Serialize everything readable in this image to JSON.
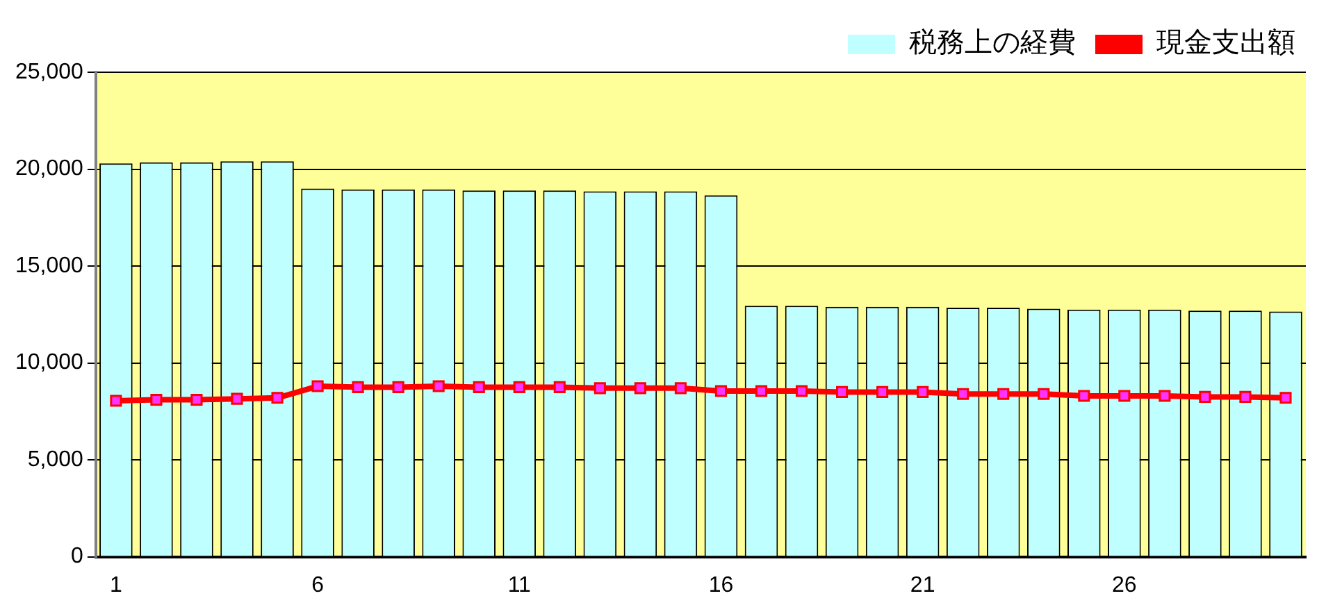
{
  "chart_data": {
    "type": "bar",
    "categories": [
      "1",
      null,
      null,
      null,
      null,
      "6",
      null,
      null,
      null,
      null,
      "11",
      null,
      null,
      null,
      null,
      "16",
      null,
      null,
      null,
      null,
      "21",
      null,
      null,
      null,
      null,
      "26",
      null,
      null,
      null,
      null
    ],
    "series": [
      {
        "name": "税務上の経費",
        "color": "#c0ffff",
        "values": [
          20300,
          20350,
          20350,
          20400,
          20400,
          19000,
          18950,
          18950,
          18950,
          18900,
          18900,
          18900,
          18850,
          18850,
          18850,
          18650,
          12950,
          12950,
          12900,
          12900,
          12900,
          12850,
          12850,
          12800,
          12750,
          12750,
          12750,
          12700,
          12700,
          12650
        ]
      },
      {
        "name": "現金支出額",
        "type": "line",
        "color": "#ff0000",
        "marker": "square",
        "values": [
          8050,
          8100,
          8100,
          8150,
          8200,
          8800,
          8750,
          8750,
          8800,
          8750,
          8750,
          8750,
          8700,
          8700,
          8700,
          8550,
          8550,
          8550,
          8500,
          8500,
          8500,
          8400,
          8400,
          8400,
          8300,
          8300,
          8300,
          8250,
          8250,
          8200
        ]
      }
    ],
    "ylim": [
      0,
      25000
    ],
    "yticks": [
      {
        "value": 0,
        "label": "0"
      },
      {
        "value": 5000,
        "label": "5,000"
      },
      {
        "value": 10000,
        "label": "10,000"
      },
      {
        "value": 15000,
        "label": "15,000"
      },
      {
        "value": 20000,
        "label": "20,000"
      },
      {
        "value": 25000,
        "label": "25,000"
      }
    ],
    "grid": "y",
    "legend": "top right"
  }
}
